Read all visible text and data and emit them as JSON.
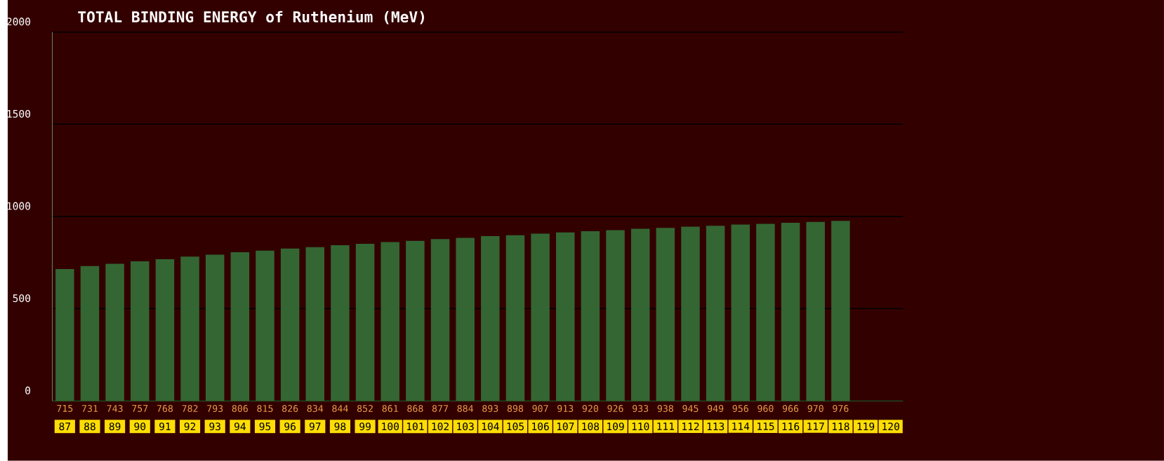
{
  "chart_data": {
    "type": "bar",
    "title": "TOTAL BINDING ENERGY of Ruthenium (MeV)",
    "categories": [
      "87",
      "88",
      "89",
      "90",
      "91",
      "92",
      "93",
      "94",
      "95",
      "96",
      "97",
      "98",
      "99",
      "100",
      "101",
      "102",
      "103",
      "104",
      "105",
      "106",
      "107",
      "108",
      "109",
      "110",
      "111",
      "112",
      "113",
      "114",
      "115",
      "116",
      "117",
      "118",
      "119",
      "120"
    ],
    "values": [
      715,
      731,
      743,
      757,
      768,
      782,
      793,
      806,
      815,
      826,
      834,
      844,
      852,
      861,
      868,
      877,
      884,
      893,
      898,
      907,
      913,
      920,
      926,
      933,
      938,
      945,
      949,
      956,
      960,
      966,
      970,
      976,
      null,
      null
    ],
    "color": "#336633",
    "ylim": [
      0,
      2000
    ],
    "yticks": [
      0,
      500,
      1000,
      1500,
      2000
    ],
    "grid": "y",
    "data_labels": true
  }
}
